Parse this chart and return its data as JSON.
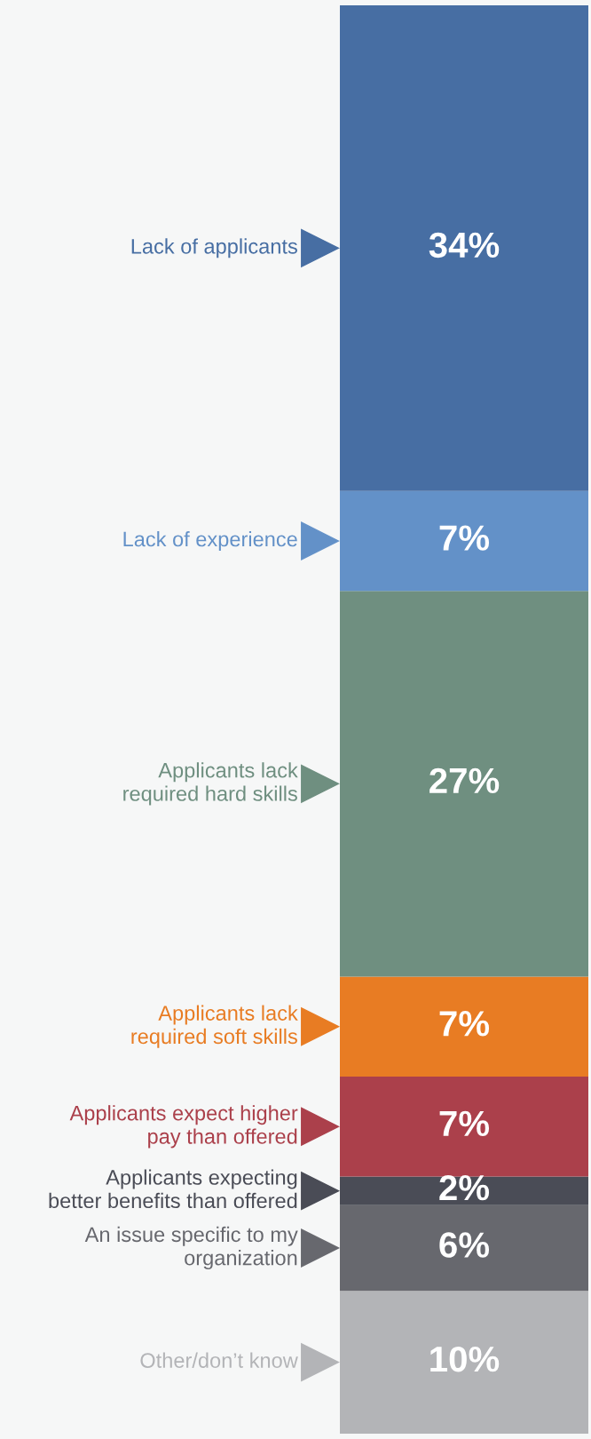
{
  "chart_data": {
    "type": "bar",
    "stacked": true,
    "categories": [
      null
    ],
    "tick_labels": false,
    "legend": "left",
    "series": [
      {
        "name": "Other/don’t know",
        "color": "#b3b4b7",
        "values": [
          10
        ],
        "value_labels": [
          "10%"
        ]
      },
      {
        "name": "An issue specific to my\norganization",
        "color": "#67686e",
        "values": [
          6
        ],
        "value_labels": [
          "6%"
        ]
      },
      {
        "name": "Applicants expecting\nbetter benefits than offered",
        "color": "#4a4c56",
        "values": [
          2
        ],
        "value_labels": [
          "2%"
        ]
      },
      {
        "name": "Applicants expect higher\npay than offered",
        "color": "#ab404b",
        "values": [
          7
        ],
        "value_labels": [
          "7%"
        ]
      },
      {
        "name": "Applicants lack\nrequired soft skills",
        "color": "#e87c23",
        "values": [
          7
        ],
        "value_labels": [
          "7%"
        ]
      },
      {
        "name": "Applicants lack\nrequired hard skills",
        "color": "#6f8f80",
        "values": [
          27
        ],
        "value_labels": [
          "27%"
        ]
      },
      {
        "name": "Lack of experience",
        "color": "#6391c8",
        "values": [
          7
        ],
        "value_labels": [
          "7%"
        ]
      },
      {
        "name": "Lack of applicants",
        "color": "#476ea3",
        "values": [
          34
        ],
        "value_labels": [
          "34%"
        ]
      }
    ]
  }
}
